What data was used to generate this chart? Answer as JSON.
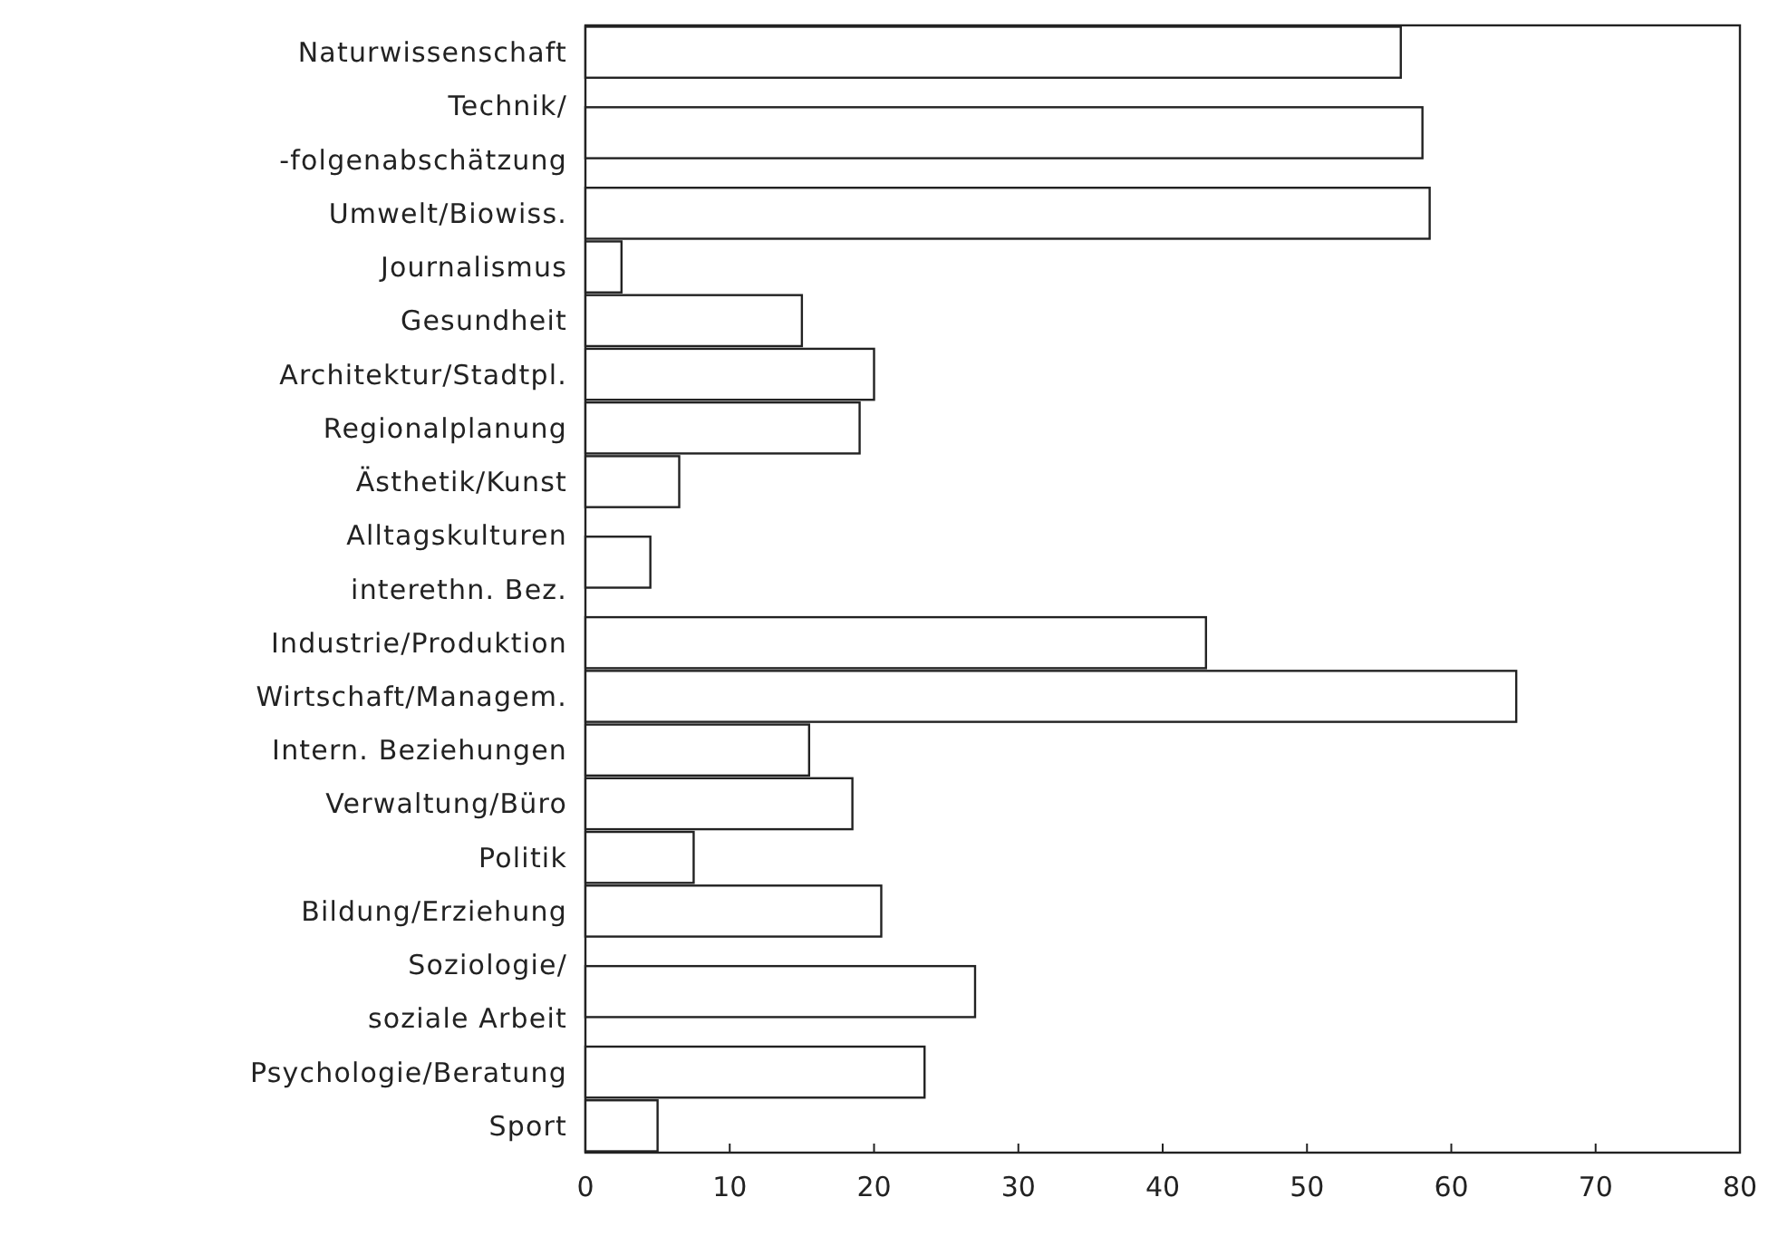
{
  "chart_data": {
    "type": "bar",
    "orientation": "horizontal",
    "categories": [
      "Naturwissenschaft",
      "Technik/\n-folgenabschätzung",
      "Umwelt/Biowiss.",
      "Journalismus",
      "Gesundheit",
      "Architektur/Stadtpl.",
      "Regionalplanung",
      "Ästhetik/Kunst",
      "Alltagskulturen\ninterethn. Bez.",
      "Industrie/Produktion",
      "Wirtschaft/Managem.",
      "Intern. Beziehungen",
      "Verwaltung/Büro",
      "Politik",
      "Bildung/Erziehung",
      "Soziologie/\nsoziale Arbeit",
      "Psychologie/Beratung",
      "Sport"
    ],
    "values": [
      56.5,
      58,
      58.5,
      2.5,
      15,
      20,
      19,
      6.5,
      4.5,
      43,
      64.5,
      15.5,
      18.5,
      7.5,
      20.5,
      27,
      23.5,
      5
    ],
    "color": "#ffffff",
    "xlim": [
      0,
      80
    ],
    "xticks": [
      0,
      10,
      20,
      30,
      40,
      50,
      60,
      70,
      80
    ],
    "grid": false
  }
}
